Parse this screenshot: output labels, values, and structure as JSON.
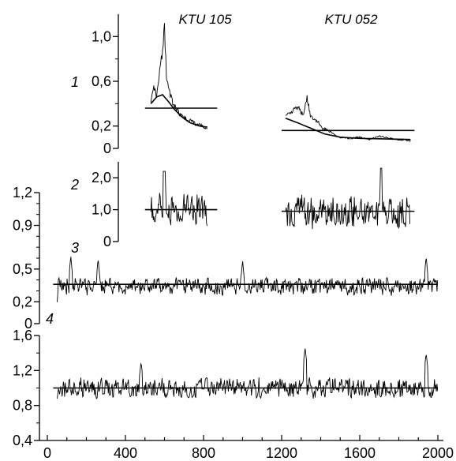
{
  "chart_data": [
    {
      "type": "line",
      "panel_label": "1",
      "sample_labels": [
        "KTU 105",
        "KTU 052"
      ],
      "y_ticks": [
        {
          "v": 0,
          "t": "0"
        },
        {
          "v": 0.2,
          "t": "0,2"
        },
        {
          "v": 0.6,
          "t": "0,6"
        },
        {
          "v": 1.0,
          "t": "1,0"
        }
      ],
      "ylim": [
        0,
        1.2
      ],
      "xlim": [
        0,
        2000
      ],
      "series": [
        {
          "x_start": 530,
          "x_end": 820,
          "points": [
            [
              530,
              0.42
            ],
            [
              545,
              0.55
            ],
            [
              560,
              0.48
            ],
            [
              575,
              0.7
            ],
            [
              590,
              0.85
            ],
            [
              600,
              1.12
            ],
            [
              610,
              0.62
            ],
            [
              620,
              0.55
            ],
            [
              630,
              0.48
            ],
            [
              645,
              0.4
            ],
            [
              660,
              0.36
            ],
            [
              680,
              0.3
            ],
            [
              700,
              0.28
            ],
            [
              720,
              0.24
            ],
            [
              740,
              0.26
            ],
            [
              760,
              0.21
            ],
            [
              780,
              0.22
            ],
            [
              800,
              0.19
            ],
            [
              820,
              0.18
            ]
          ]
        },
        {
          "x_start": 1220,
          "x_end": 1860,
          "points": [
            [
              1220,
              0.3
            ],
            [
              1250,
              0.32
            ],
            [
              1280,
              0.38
            ],
            [
              1310,
              0.3
            ],
            [
              1330,
              0.45
            ],
            [
              1350,
              0.28
            ],
            [
              1380,
              0.25
            ],
            [
              1410,
              0.18
            ],
            [
              1440,
              0.16
            ],
            [
              1470,
              0.12
            ],
            [
              1500,
              0.1
            ],
            [
              1550,
              0.09
            ],
            [
              1600,
              0.1
            ],
            [
              1650,
              0.08
            ],
            [
              1700,
              0.11
            ],
            [
              1750,
              0.09
            ],
            [
              1800,
              0.08
            ],
            [
              1860,
              0.07
            ]
          ]
        }
      ],
      "trend_curves": [
        {
          "points": [
            [
              530,
              0.4
            ],
            [
              560,
              0.46
            ],
            [
              590,
              0.48
            ],
            [
              620,
              0.42
            ],
            [
              650,
              0.35
            ],
            [
              690,
              0.28
            ],
            [
              730,
              0.23
            ],
            [
              780,
              0.2
            ],
            [
              820,
              0.19
            ]
          ]
        },
        {
          "points": [
            [
              1220,
              0.27
            ],
            [
              1280,
              0.23
            ],
            [
              1350,
              0.18
            ],
            [
              1420,
              0.13
            ],
            [
              1500,
              0.1
            ],
            [
              1600,
              0.09
            ],
            [
              1860,
              0.08
            ]
          ]
        }
      ],
      "reference_lines": [
        {
          "y": 0.36,
          "x_start": 500,
          "x_end": 870
        },
        {
          "y": 0.16,
          "x_start": 1200,
          "x_end": 1880
        }
      ]
    },
    {
      "type": "line",
      "panel_label": "2",
      "y_ticks": [
        {
          "v": 0,
          "t": "0"
        },
        {
          "v": 1.0,
          "t": "1,0"
        },
        {
          "v": 2.0,
          "t": "2,0"
        }
      ],
      "ylim": [
        0,
        2.5
      ],
      "xlim": [
        0,
        2000
      ],
      "series": [
        {
          "x_start": 530,
          "x_end": 820,
          "mean": 1.0,
          "amplitude": 0.55,
          "peak_x": 600,
          "peak_y": 2.2
        },
        {
          "x_start": 1220,
          "x_end": 1860,
          "mean": 0.95,
          "amplitude": 0.6,
          "peak_x": 1710,
          "peak_y": 2.3
        }
      ],
      "reference_lines": [
        {
          "y": 1.0,
          "x_start": 500,
          "x_end": 870
        },
        {
          "y": 0.95,
          "x_start": 1200,
          "x_end": 1880
        }
      ]
    },
    {
      "type": "line",
      "panel_label": "3",
      "y_ticks": [
        {
          "v": 0,
          "t": "0"
        },
        {
          "v": 0.2,
          "t": "0,2"
        },
        {
          "v": 0.5,
          "t": "0,5"
        },
        {
          "v": 0.9,
          "t": "0,9"
        },
        {
          "v": 1.2,
          "t": "1,2"
        }
      ],
      "ylim": [
        0,
        1.2
      ],
      "xlim": [
        0,
        2000
      ],
      "series": [
        {
          "x_start": 50,
          "x_end": 2000,
          "mean": 0.34,
          "amplitude": 0.09,
          "start_y": 0.02,
          "peaks": [
            [
              120,
              0.62
            ],
            [
              260,
              0.6
            ],
            [
              1000,
              0.58
            ],
            [
              1940,
              0.62
            ]
          ]
        }
      ],
      "reference_lines": [
        {
          "y": 0.36,
          "x_start": 30,
          "x_end": 2000
        }
      ]
    },
    {
      "type": "line",
      "panel_label": "4",
      "y_ticks": [
        {
          "v": 0.4,
          "t": "0,4"
        },
        {
          "v": 0.8,
          "t": "0,8"
        },
        {
          "v": 1.2,
          "t": "1,2"
        },
        {
          "v": 1.6,
          "t": "1,6"
        }
      ],
      "x_ticks": [
        {
          "v": 0,
          "t": "0"
        },
        {
          "v": 400,
          "t": "400"
        },
        {
          "v": 800,
          "t": "800"
        },
        {
          "v": 1200,
          "t": "1200"
        },
        {
          "v": 1600,
          "t": "1600"
        },
        {
          "v": 2000,
          "t": "2000"
        }
      ],
      "ylim": [
        0.4,
        1.6
      ],
      "xlim": [
        0,
        2000
      ],
      "series": [
        {
          "x_start": 50,
          "x_end": 2000,
          "mean": 1.0,
          "amplitude": 0.13,
          "start_y": 0.6,
          "peaks": [
            [
              1320,
              1.46
            ],
            [
              1940,
              1.4
            ],
            [
              480,
              1.3
            ]
          ]
        }
      ],
      "reference_lines": [
        {
          "y": 1.0,
          "x_start": 30,
          "x_end": 2000
        }
      ]
    }
  ]
}
